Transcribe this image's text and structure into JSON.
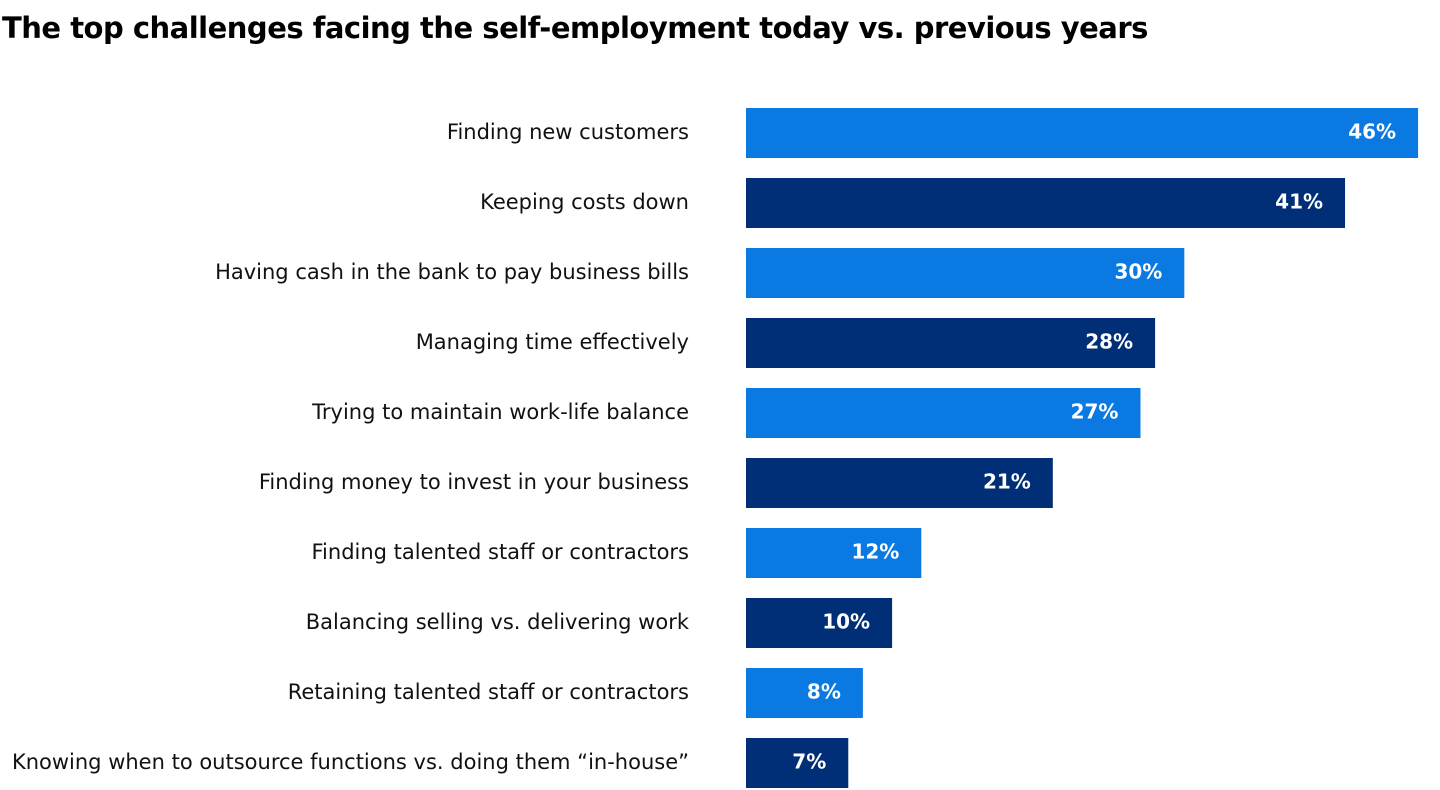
{
  "chart_data": {
    "type": "bar",
    "orientation": "horizontal",
    "title": "The top challenges facing the self-employment today vs. previous years",
    "categories": [
      "Finding new customers",
      "Keeping costs down",
      "Having cash in the bank to pay business bills",
      "Managing time effectively",
      "Trying to maintain work-life balance",
      "Finding money to invest in your business",
      "Finding talented staff or contractors",
      "Balancing selling vs. delivering work",
      "Retaining talented staff or contractors",
      "Knowing when to outsource functions vs. doing them “in-house”"
    ],
    "values": [
      46,
      41,
      30,
      28,
      27,
      21,
      12,
      10,
      8,
      7
    ],
    "value_labels": [
      "46%",
      "41%",
      "30%",
      "28%",
      "27%",
      "21%",
      "12%",
      "10%",
      "8%",
      "7%"
    ],
    "colors": [
      "#0a7ae2",
      "#002f78",
      "#0a7ae2",
      "#002f78",
      "#0a7ae2",
      "#002f78",
      "#0a7ae2",
      "#002f78",
      "#0a7ae2",
      "#002f78"
    ],
    "xlim": [
      0,
      47.5
    ]
  }
}
